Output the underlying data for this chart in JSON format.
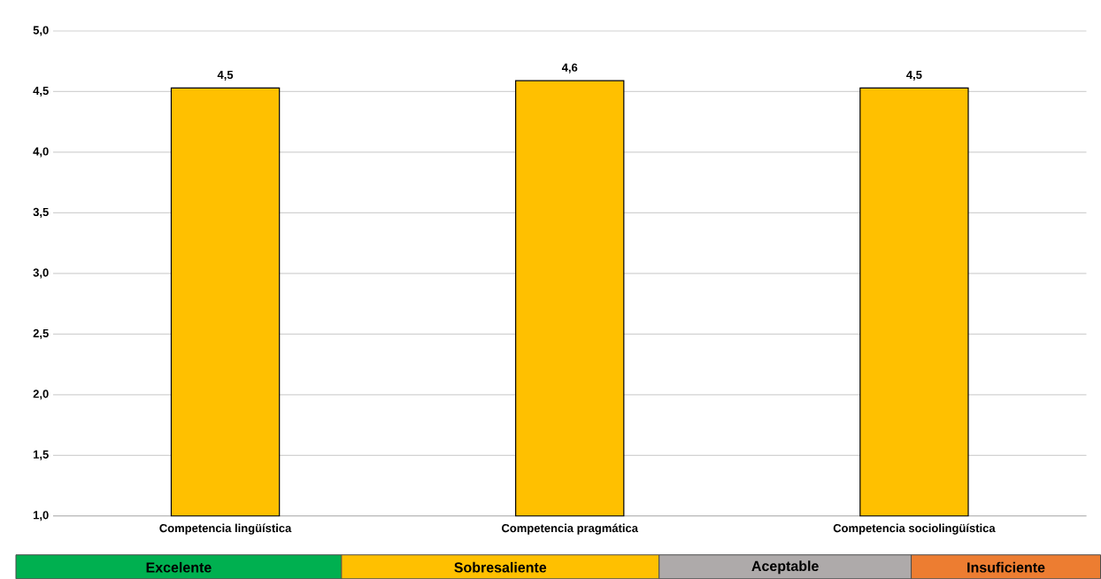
{
  "chart_data": {
    "type": "bar",
    "categories": [
      "Competencia lingüística",
      "Competencia pragmática",
      "Competencia sociolingüística"
    ],
    "values": [
      4.53,
      4.59,
      4.53
    ],
    "value_labels": [
      "4,5",
      "4,6",
      "4,5"
    ],
    "color": "#ffc000",
    "ylim": [
      1,
      5
    ],
    "yticks": [
      {
        "value": 1,
        "label": "1,0"
      },
      {
        "value": 1.5,
        "label": "1,5"
      },
      {
        "value": 2,
        "label": "2,0"
      },
      {
        "value": 2.5,
        "label": "2,5"
      },
      {
        "value": 3,
        "label": "3,0"
      },
      {
        "value": 3.5,
        "label": "3,5"
      },
      {
        "value": 4,
        "label": "4,0"
      },
      {
        "value": 4.5,
        "label": "4,5"
      },
      {
        "value": 5,
        "label": "5,0"
      }
    ],
    "grid": "y",
    "annotations": [
      "Excelente",
      "Sobresaliente",
      "Aceptable",
      "Insuficiente"
    ]
  }
}
